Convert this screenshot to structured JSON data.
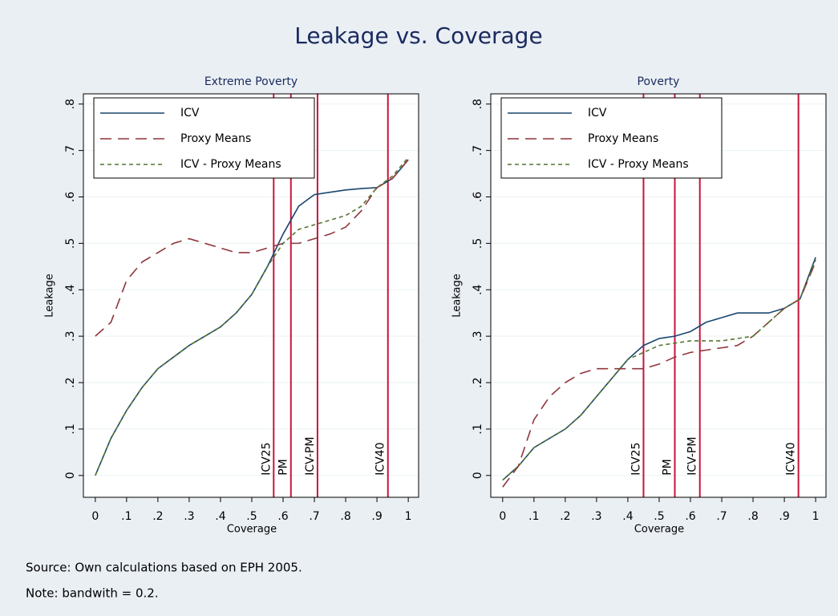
{
  "title": "Leakage vs. Coverage",
  "notes": [
    "Source: Own calculations based on EPH 2005.",
    "Note: bandwith = 0.2."
  ],
  "chart_data": [
    {
      "type": "line",
      "title": "Extreme Poverty",
      "xlabel": "Coverage",
      "ylabel": "Leakage",
      "x": [
        0,
        0.05,
        0.1,
        0.15,
        0.2,
        0.25,
        0.3,
        0.35,
        0.4,
        0.45,
        0.5,
        0.55,
        0.6,
        0.65,
        0.7,
        0.75,
        0.8,
        0.85,
        0.9,
        0.95,
        1
      ],
      "xlim": [
        -0.038,
        1.033
      ],
      "ylim": [
        -0.047,
        0.822
      ],
      "xticks": [
        0,
        {
          "value": 0.1,
          "label": ".1"
        },
        {
          "value": 0.2,
          "label": ".2"
        },
        {
          "value": 0.3,
          "label": ".3"
        },
        {
          "value": 0.4,
          "label": ".4"
        },
        {
          "value": 0.5,
          "label": ".5"
        },
        {
          "value": 0.6,
          "label": ".6"
        },
        {
          "value": 0.7,
          "label": ".7"
        },
        {
          "value": 0.8,
          "label": ".8"
        },
        {
          "value": 0.9,
          "label": ".9"
        },
        1
      ],
      "yticks": [
        0,
        {
          "value": 0.1,
          "label": ".1"
        },
        {
          "value": 0.2,
          "label": ".2"
        },
        {
          "value": 0.3,
          "label": ".3"
        },
        {
          "value": 0.4,
          "label": ".4"
        },
        {
          "value": 0.5,
          "label": ".5"
        },
        {
          "value": 0.6,
          "label": ".6"
        },
        {
          "value": 0.7,
          "label": ".7"
        },
        {
          "value": 0.8,
          "label": ".8"
        }
      ],
      "grid": true,
      "legend": "top-left",
      "series": [
        {
          "name": "ICV",
          "color": "#1a476f",
          "style": "solid",
          "values": [
            0,
            0.08,
            0.14,
            0.19,
            0.23,
            0.255,
            0.28,
            0.3,
            0.32,
            0.35,
            0.39,
            0.45,
            0.52,
            0.58,
            0.605,
            0.61,
            0.615,
            0.618,
            0.62,
            0.64,
            0.68
          ]
        },
        {
          "name": "Proxy Means",
          "color": "#90353b",
          "style": "dashed",
          "values": [
            0.3,
            0.33,
            0.42,
            0.46,
            0.48,
            0.5,
            0.51,
            0.5,
            0.49,
            0.48,
            0.48,
            0.49,
            0.5,
            0.5,
            0.51,
            0.52,
            0.535,
            0.57,
            0.62,
            0.64,
            0.68
          ]
        },
        {
          "name": "ICV - Proxy Means",
          "color": "#55752f",
          "style": "dotted",
          "values": [
            0,
            0.08,
            0.14,
            0.19,
            0.23,
            0.255,
            0.28,
            0.3,
            0.32,
            0.35,
            0.39,
            0.45,
            0.5,
            0.53,
            0.54,
            0.55,
            0.56,
            0.58,
            0.62,
            0.645,
            0.685
          ]
        }
      ],
      "vlines": [
        {
          "x": 0.57,
          "label": "ICV25"
        },
        {
          "x": 0.625,
          "label": "PM"
        },
        {
          "x": 0.71,
          "label": "ICV-PM"
        },
        {
          "x": 0.935,
          "label": "ICV40"
        }
      ],
      "vline_color": "#c8143c"
    },
    {
      "type": "line",
      "title": "Poverty",
      "xlabel": "Coverage",
      "ylabel": "Leakage",
      "x": [
        0,
        0.05,
        0.1,
        0.15,
        0.2,
        0.25,
        0.3,
        0.35,
        0.4,
        0.45,
        0.5,
        0.55,
        0.6,
        0.65,
        0.7,
        0.75,
        0.8,
        0.85,
        0.9,
        0.95,
        1
      ],
      "xlim": [
        -0.038,
        1.033
      ],
      "ylim": [
        -0.047,
        0.822
      ],
      "xticks": [
        0,
        {
          "value": 0.1,
          "label": ".1"
        },
        {
          "value": 0.2,
          "label": ".2"
        },
        {
          "value": 0.3,
          "label": ".3"
        },
        {
          "value": 0.4,
          "label": ".4"
        },
        {
          "value": 0.5,
          "label": ".5"
        },
        {
          "value": 0.6,
          "label": ".6"
        },
        {
          "value": 0.7,
          "label": ".7"
        },
        {
          "value": 0.8,
          "label": ".8"
        },
        {
          "value": 0.9,
          "label": ".9"
        },
        1
      ],
      "yticks": [
        0,
        {
          "value": 0.1,
          "label": ".1"
        },
        {
          "value": 0.2,
          "label": ".2"
        },
        {
          "value": 0.3,
          "label": ".3"
        },
        {
          "value": 0.4,
          "label": ".4"
        },
        {
          "value": 0.5,
          "label": ".5"
        },
        {
          "value": 0.6,
          "label": ".6"
        },
        {
          "value": 0.7,
          "label": ".7"
        },
        {
          "value": 0.8,
          "label": ".8"
        }
      ],
      "grid": true,
      "legend": "top-left",
      "series": [
        {
          "name": "ICV",
          "color": "#1a476f",
          "style": "solid",
          "values": [
            -0.01,
            0.02,
            0.06,
            0.08,
            0.1,
            0.13,
            0.17,
            0.21,
            0.25,
            0.28,
            0.295,
            0.3,
            0.31,
            0.33,
            0.34,
            0.35,
            0.35,
            0.35,
            0.36,
            0.38,
            0.47
          ]
        },
        {
          "name": "Proxy Means",
          "color": "#90353b",
          "style": "dashed",
          "values": [
            -0.025,
            0.02,
            0.12,
            0.17,
            0.2,
            0.22,
            0.23,
            0.23,
            0.23,
            0.23,
            0.24,
            0.255,
            0.265,
            0.27,
            0.275,
            0.28,
            0.3,
            0.33,
            0.36,
            0.38,
            0.46
          ]
        },
        {
          "name": "ICV - Proxy Means",
          "color": "#55752f",
          "style": "dotted",
          "values": [
            -0.01,
            0.02,
            0.06,
            0.08,
            0.1,
            0.13,
            0.17,
            0.21,
            0.25,
            0.265,
            0.28,
            0.285,
            0.29,
            0.29,
            0.29,
            0.295,
            0.3,
            0.33,
            0.36,
            0.38,
            0.465
          ]
        }
      ],
      "vlines": [
        {
          "x": 0.45,
          "label": "ICV25"
        },
        {
          "x": 0.55,
          "label": "PM"
        },
        {
          "x": 0.63,
          "label": "ICV-PM"
        },
        {
          "x": 0.945,
          "label": "ICV40"
        }
      ],
      "vline_color": "#c8143c"
    }
  ]
}
